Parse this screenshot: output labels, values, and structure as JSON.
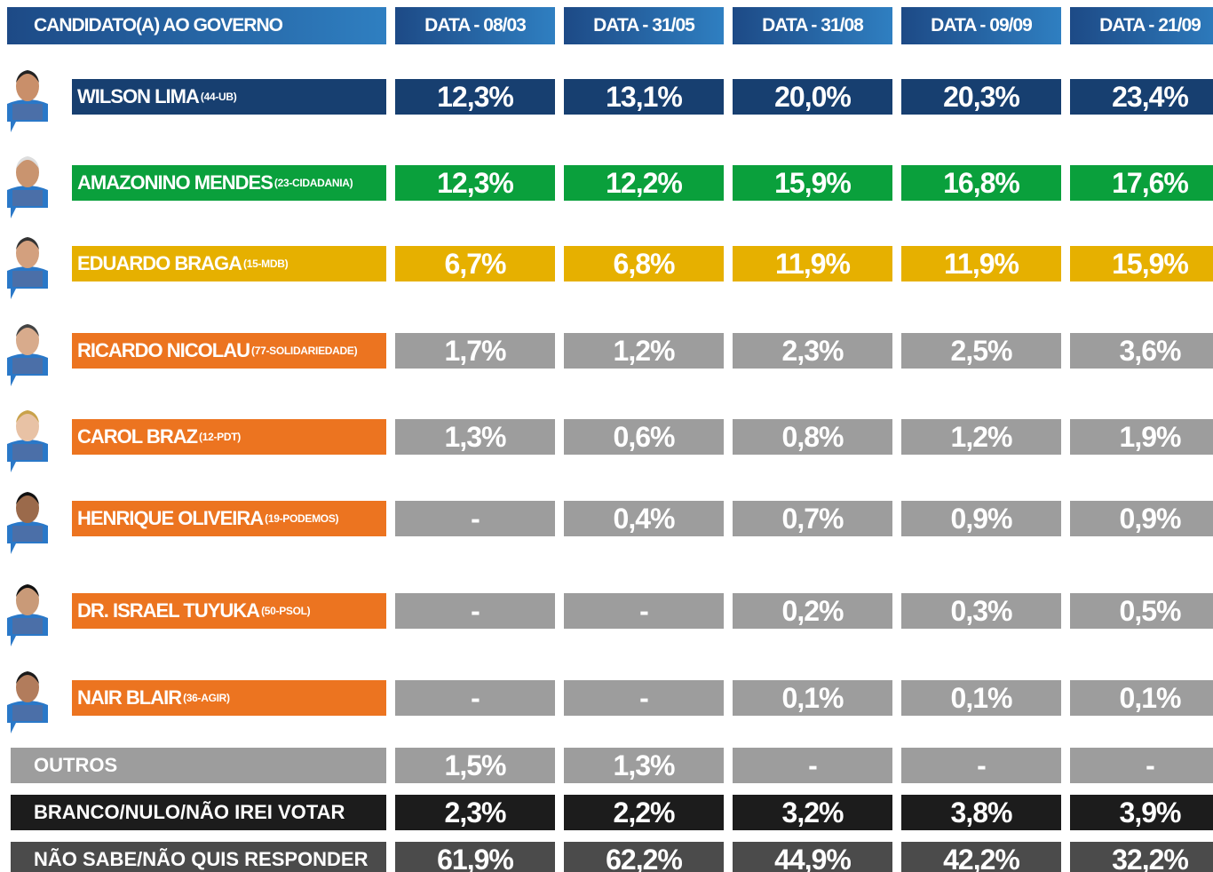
{
  "header": {
    "label": "CANDIDATO(A) AO GOVERNO",
    "dates": [
      "DATA - 08/03",
      "DATA - 31/05",
      "DATA - 31/08",
      "DATA - 09/09",
      "DATA - 21/09"
    ]
  },
  "candidates": [
    {
      "name": "WILSON LIMA",
      "party": "(44-UB)",
      "values": [
        "12,3%",
        "13,1%",
        "20,0%",
        "20,3%",
        "23,4%"
      ]
    },
    {
      "name": "AMAZONINO MENDES",
      "party": "(23-CIDADANIA)",
      "values": [
        "12,3%",
        "12,2%",
        "15,9%",
        "16,8%",
        "17,6%"
      ]
    },
    {
      "name": "EDUARDO BRAGA",
      "party": "(15-MDB)",
      "values": [
        "6,7%",
        "6,8%",
        "11,9%",
        "11,9%",
        "15,9%"
      ]
    },
    {
      "name": "RICARDO NICOLAU",
      "party": "(77-SOLIDARIEDADE)",
      "values": [
        "1,7%",
        "1,2%",
        "2,3%",
        "2,5%",
        "3,6%"
      ]
    },
    {
      "name": "CAROL BRAZ",
      "party": "(12-PDT)",
      "values": [
        "1,3%",
        "0,6%",
        "0,8%",
        "1,2%",
        "1,9%"
      ]
    },
    {
      "name": "HENRIQUE OLIVEIRA",
      "party": "(19-PODEMOS)",
      "values": [
        "-",
        "0,4%",
        "0,7%",
        "0,9%",
        "0,9%"
      ]
    },
    {
      "name": "DR. ISRAEL TUYUKA",
      "party": "(50-PSOL)",
      "values": [
        "-",
        "-",
        "0,2%",
        "0,3%",
        "0,5%"
      ]
    },
    {
      "name": "NAIR BLAIR",
      "party": "(36-AGIR)",
      "values": [
        "-",
        "-",
        "0,1%",
        "0,1%",
        "0,1%"
      ]
    }
  ],
  "summary": [
    {
      "label": "OUTROS",
      "values": [
        "1,5%",
        "1,3%",
        "-",
        "-",
        "-"
      ]
    },
    {
      "label": "BRANCO/NULO/NÃO IREI VOTAR",
      "values": [
        "2,3%",
        "2,2%",
        "3,2%",
        "3,8%",
        "3,9%"
      ]
    },
    {
      "label": "NÃO SABE/NÃO QUIS RESPONDER",
      "values": [
        "61,9%",
        "62,2%",
        "44,9%",
        "42,2%",
        "32,2%"
      ]
    }
  ]
}
